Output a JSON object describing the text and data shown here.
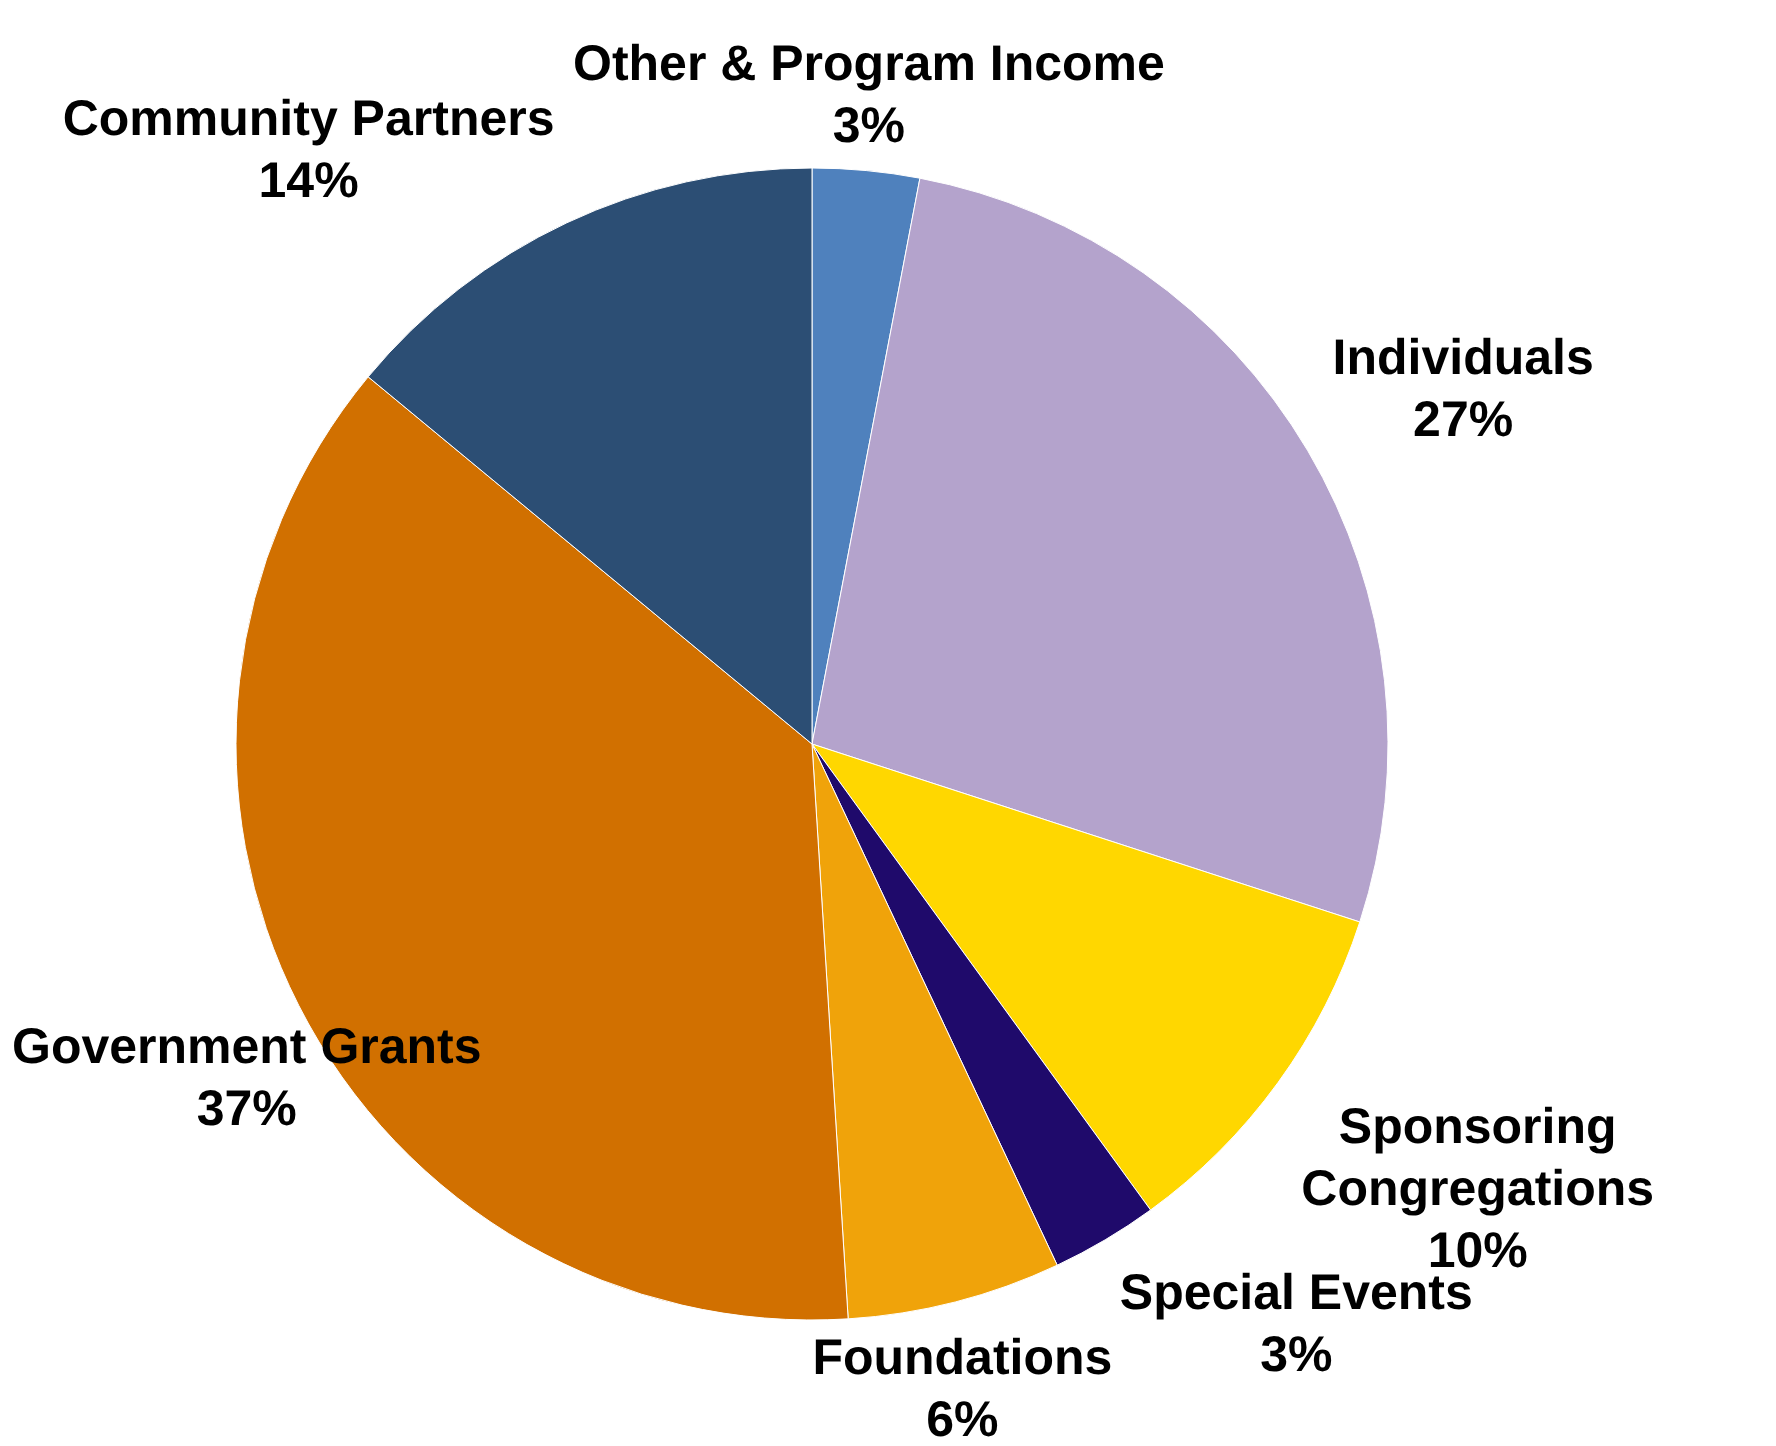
{
  "chart_data": {
    "type": "pie",
    "categories": [
      "Other & Program Income",
      "Individuals",
      "Sponsoring Congregations",
      "Special Events",
      "Foundations",
      "Government Grants",
      "Community Partners"
    ],
    "values": [
      3,
      27,
      10,
      3,
      6,
      37,
      14
    ],
    "value_labels": [
      "3%",
      "27%",
      "10%",
      "3%",
      "6%",
      "37%",
      "14%"
    ],
    "colors": [
      "#4f81bd",
      "#b4a3cc",
      "#ffd700",
      "#1f0a6b",
      "#f0a30a",
      "#d17000",
      "#2c4e74"
    ]
  }
}
